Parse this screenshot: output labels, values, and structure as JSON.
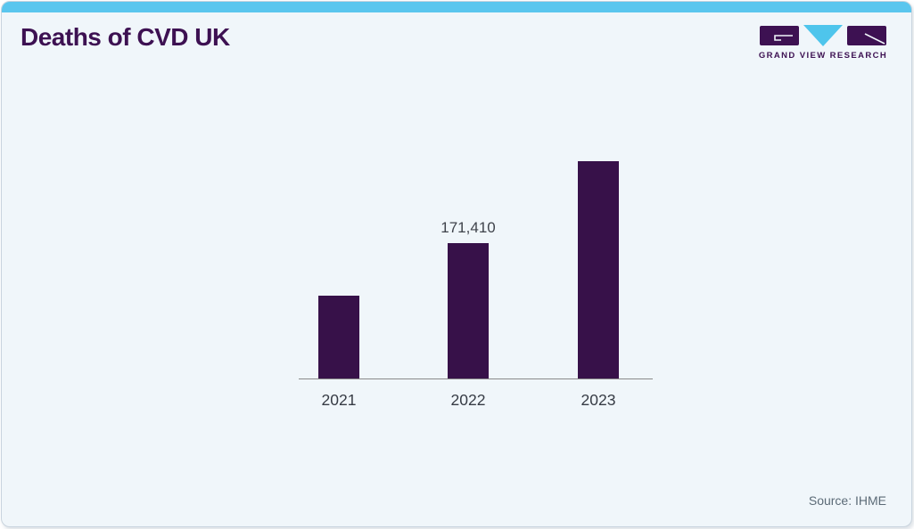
{
  "header": {
    "title": "Deaths of CVD UK",
    "logo": {
      "text": "GRAND VIEW RESEARCH"
    }
  },
  "footer": {
    "source": "Source: IHME"
  },
  "colors": {
    "accent_strip": "#5ac6ee",
    "brand_purple": "#3d1152",
    "bar": "#371149",
    "card_background": "#f0f6fa",
    "axis_line": "#8a8a8a",
    "tick_label": "#363b44",
    "value_label": "#3f434b",
    "source_text": "#5c6b77"
  },
  "chart_data": {
    "type": "bar",
    "title": "Deaths of CVD UK",
    "categories": [
      "2021",
      "2022",
      "2023"
    ],
    "values": [
      105000,
      171410,
      275000
    ],
    "value_labels": [
      "",
      "171,410",
      ""
    ],
    "xlabel": "",
    "ylabel": "",
    "ylim": [
      0,
      315000
    ],
    "grid": false,
    "legend": "none",
    "note": "only the 2022 bar carries a printed data label; 2021 and 2023 values estimated from bar heights"
  }
}
